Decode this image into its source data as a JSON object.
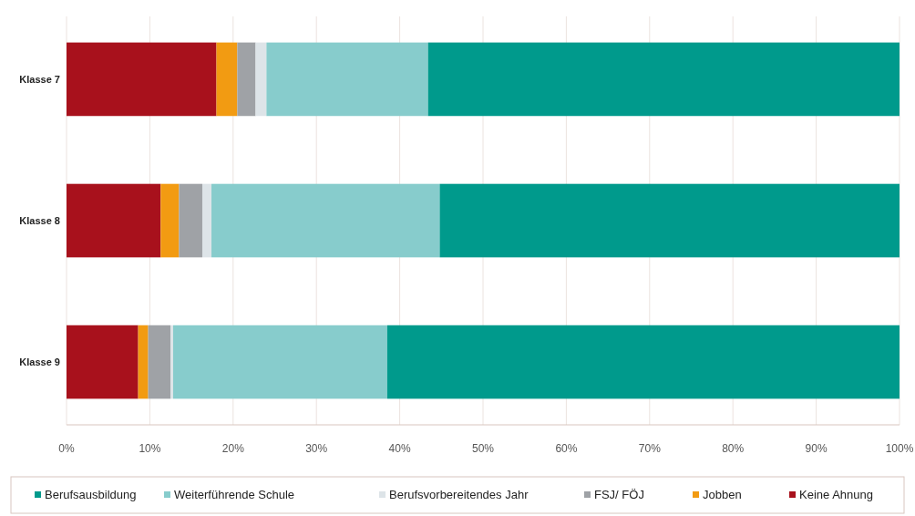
{
  "chart_data": {
    "type": "bar",
    "orientation": "horizontal",
    "stacked": true,
    "categories": [
      "Klasse 7",
      "Klasse 8",
      "Klasse 9"
    ],
    "series": [
      {
        "name": "Keine Ahnung",
        "color": "#a8111c",
        "values": [
          18.0,
          11.3,
          8.6
        ]
      },
      {
        "name": "Jobben",
        "color": "#f29b12",
        "values": [
          2.5,
          2.2,
          1.2
        ]
      },
      {
        "name": "FSJ/ FÖJ",
        "color": "#9fa2a6",
        "values": [
          2.2,
          2.8,
          2.7
        ]
      },
      {
        "name": "Berufsvorbereitendes Jahr",
        "color": "#dde4e8",
        "values": [
          1.3,
          1.1,
          0.3
        ]
      },
      {
        "name": "Weiterführende Schule",
        "color": "#87cccc",
        "values": [
          19.4,
          27.4,
          25.7
        ]
      },
      {
        "name": "Berufsausbildung",
        "color": "#009a8c",
        "values": [
          56.6,
          55.2,
          61.5
        ]
      }
    ],
    "xlim": [
      0,
      100
    ],
    "xticks": [
      {
        "value": 0,
        "label": "0%"
      },
      {
        "value": 10,
        "label": "10%"
      },
      {
        "value": 20,
        "label": "20%"
      },
      {
        "value": 30,
        "label": "30%"
      },
      {
        "value": 40,
        "label": "40%"
      },
      {
        "value": 50,
        "label": "50%"
      },
      {
        "value": 60,
        "label": "60%"
      },
      {
        "value": 70,
        "label": "70%"
      },
      {
        "value": 80,
        "label": "80%"
      },
      {
        "value": 90,
        "label": "90%"
      },
      {
        "value": 100,
        "label": "100%"
      }
    ],
    "grid": "x",
    "legend": "bottom"
  }
}
